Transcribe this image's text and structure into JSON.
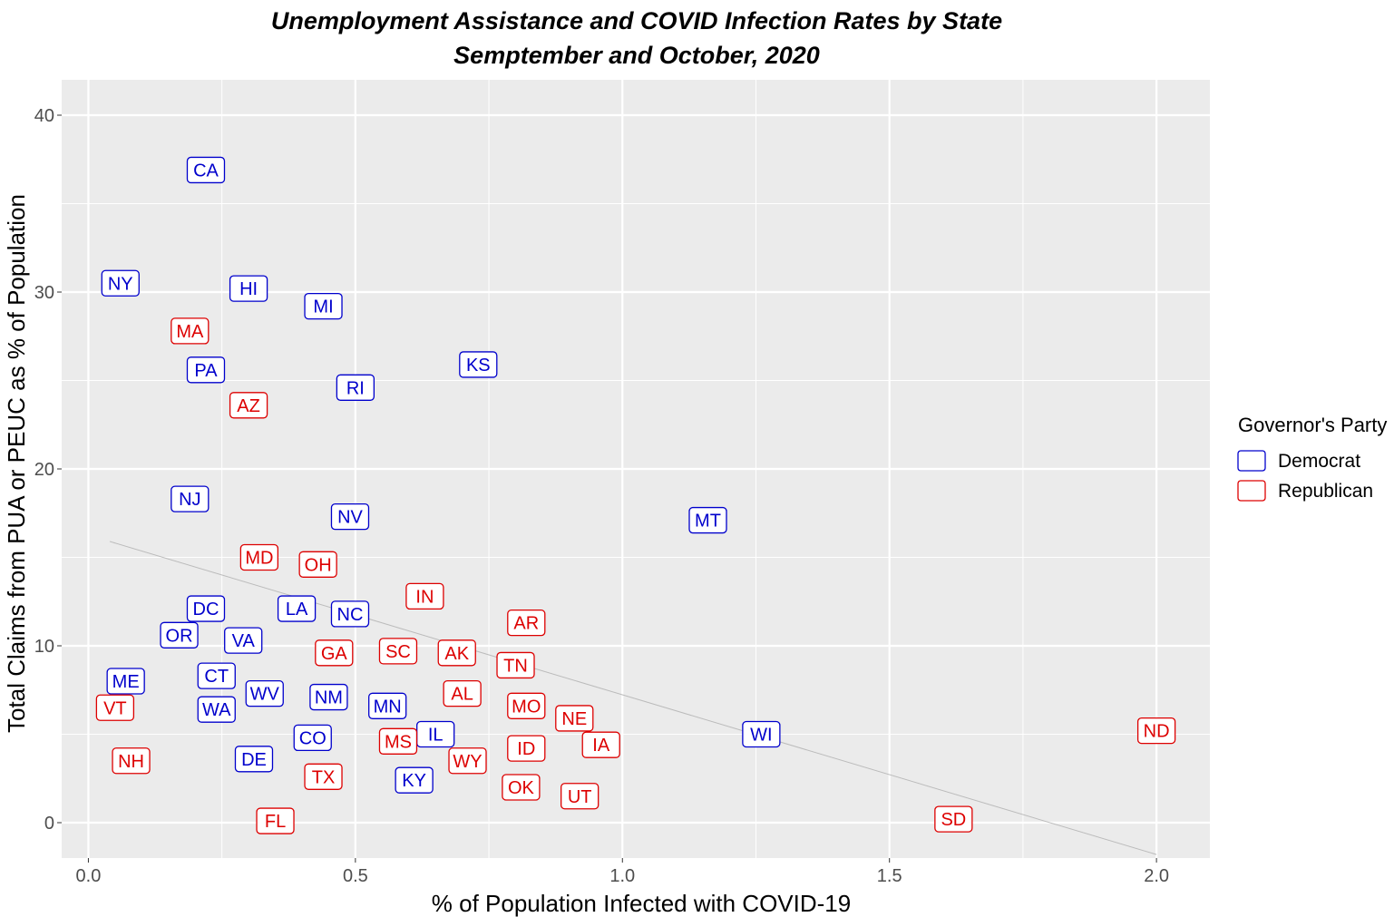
{
  "chart_data": {
    "type": "scatter",
    "title": "Unemployment Assistance and COVID Infection Rates by State",
    "subtitle": "Semptember and October, 2020",
    "xlabel": "% of Population Infected with COVID-19",
    "ylabel": "Total Claims from PUA or PEUC as % of Population",
    "xlim": [
      -0.05,
      2.1
    ],
    "ylim": [
      -2,
      42
    ],
    "x_ticks": [
      0.0,
      0.5,
      1.0,
      1.5,
      2.0
    ],
    "x_tick_labels": [
      "0.0",
      "0.5",
      "1.0",
      "1.5",
      "2.0"
    ],
    "y_ticks": [
      0,
      10,
      20,
      30,
      40
    ],
    "y_tick_labels": [
      "0",
      "10",
      "20",
      "30",
      "40"
    ],
    "grid": true,
    "legend": {
      "title": "Governor's Party",
      "position": "right",
      "entries": [
        {
          "label": "Democrat",
          "color": "#0000cc"
        },
        {
          "label": "Republican",
          "color": "#dd0000"
        }
      ]
    },
    "trend_line": {
      "x": [
        0.04,
        2.0
      ],
      "y": [
        15.9,
        -1.8
      ],
      "color": "#bbbbbb"
    },
    "points": [
      {
        "label": "CA",
        "x": 0.22,
        "y": 36.9,
        "party": "Democrat"
      },
      {
        "label": "NY",
        "x": 0.06,
        "y": 30.5,
        "party": "Democrat"
      },
      {
        "label": "HI",
        "x": 0.3,
        "y": 30.2,
        "party": "Democrat"
      },
      {
        "label": "MI",
        "x": 0.44,
        "y": 29.2,
        "party": "Democrat"
      },
      {
        "label": "MA",
        "x": 0.19,
        "y": 27.8,
        "party": "Republican"
      },
      {
        "label": "KS",
        "x": 0.73,
        "y": 25.9,
        "party": "Democrat"
      },
      {
        "label": "PA",
        "x": 0.22,
        "y": 25.6,
        "party": "Democrat"
      },
      {
        "label": "RI",
        "x": 0.5,
        "y": 24.6,
        "party": "Democrat"
      },
      {
        "label": "AZ",
        "x": 0.3,
        "y": 23.6,
        "party": "Republican"
      },
      {
        "label": "NJ",
        "x": 0.19,
        "y": 18.3,
        "party": "Democrat"
      },
      {
        "label": "NV",
        "x": 0.49,
        "y": 17.3,
        "party": "Democrat"
      },
      {
        "label": "MT",
        "x": 1.16,
        "y": 17.1,
        "party": "Democrat"
      },
      {
        "label": "MD",
        "x": 0.32,
        "y": 15.0,
        "party": "Republican"
      },
      {
        "label": "OH",
        "x": 0.43,
        "y": 14.6,
        "party": "Republican"
      },
      {
        "label": "IN",
        "x": 0.63,
        "y": 12.8,
        "party": "Republican"
      },
      {
        "label": "DC",
        "x": 0.22,
        "y": 12.1,
        "party": "Democrat"
      },
      {
        "label": "LA",
        "x": 0.39,
        "y": 12.1,
        "party": "Democrat"
      },
      {
        "label": "NC",
        "x": 0.49,
        "y": 11.8,
        "party": "Democrat"
      },
      {
        "label": "AR",
        "x": 0.82,
        "y": 11.3,
        "party": "Republican"
      },
      {
        "label": "OR",
        "x": 0.17,
        "y": 10.6,
        "party": "Democrat"
      },
      {
        "label": "VA",
        "x": 0.29,
        "y": 10.3,
        "party": "Democrat"
      },
      {
        "label": "GA",
        "x": 0.46,
        "y": 9.6,
        "party": "Republican"
      },
      {
        "label": "SC",
        "x": 0.58,
        "y": 9.7,
        "party": "Republican"
      },
      {
        "label": "AK",
        "x": 0.69,
        "y": 9.6,
        "party": "Republican"
      },
      {
        "label": "TN",
        "x": 0.8,
        "y": 8.9,
        "party": "Republican"
      },
      {
        "label": "CT",
        "x": 0.24,
        "y": 8.3,
        "party": "Democrat"
      },
      {
        "label": "ME",
        "x": 0.07,
        "y": 8.0,
        "party": "Democrat"
      },
      {
        "label": "WV",
        "x": 0.33,
        "y": 7.3,
        "party": "Democrat"
      },
      {
        "label": "NM",
        "x": 0.45,
        "y": 7.1,
        "party": "Democrat"
      },
      {
        "label": "AL",
        "x": 0.7,
        "y": 7.3,
        "party": "Republican"
      },
      {
        "label": "MN",
        "x": 0.56,
        "y": 6.6,
        "party": "Democrat"
      },
      {
        "label": "MO",
        "x": 0.82,
        "y": 6.6,
        "party": "Republican"
      },
      {
        "label": "VT",
        "x": 0.05,
        "y": 6.5,
        "party": "Republican"
      },
      {
        "label": "WA",
        "x": 0.24,
        "y": 6.4,
        "party": "Democrat"
      },
      {
        "label": "NE",
        "x": 0.91,
        "y": 5.9,
        "party": "Republican"
      },
      {
        "label": "ND",
        "x": 2.0,
        "y": 5.2,
        "party": "Republican"
      },
      {
        "label": "WI",
        "x": 1.26,
        "y": 5.0,
        "party": "Democrat"
      },
      {
        "label": "IL",
        "x": 0.65,
        "y": 5.0,
        "party": "Democrat"
      },
      {
        "label": "CO",
        "x": 0.42,
        "y": 4.8,
        "party": "Democrat"
      },
      {
        "label": "MS",
        "x": 0.58,
        "y": 4.6,
        "party": "Republican"
      },
      {
        "label": "IA",
        "x": 0.96,
        "y": 4.4,
        "party": "Republican"
      },
      {
        "label": "ID",
        "x": 0.82,
        "y": 4.2,
        "party": "Republican"
      },
      {
        "label": "NH",
        "x": 0.08,
        "y": 3.5,
        "party": "Republican"
      },
      {
        "label": "DE",
        "x": 0.31,
        "y": 3.6,
        "party": "Democrat"
      },
      {
        "label": "WY",
        "x": 0.71,
        "y": 3.5,
        "party": "Republican"
      },
      {
        "label": "TX",
        "x": 0.44,
        "y": 2.6,
        "party": "Republican"
      },
      {
        "label": "KY",
        "x": 0.61,
        "y": 2.4,
        "party": "Democrat"
      },
      {
        "label": "OK",
        "x": 0.81,
        "y": 2.0,
        "party": "Republican"
      },
      {
        "label": "UT",
        "x": 0.92,
        "y": 1.5,
        "party": "Republican"
      },
      {
        "label": "FL",
        "x": 0.35,
        "y": 0.1,
        "party": "Republican"
      },
      {
        "label": "SD",
        "x": 1.62,
        "y": 0.2,
        "party": "Republican"
      }
    ]
  }
}
